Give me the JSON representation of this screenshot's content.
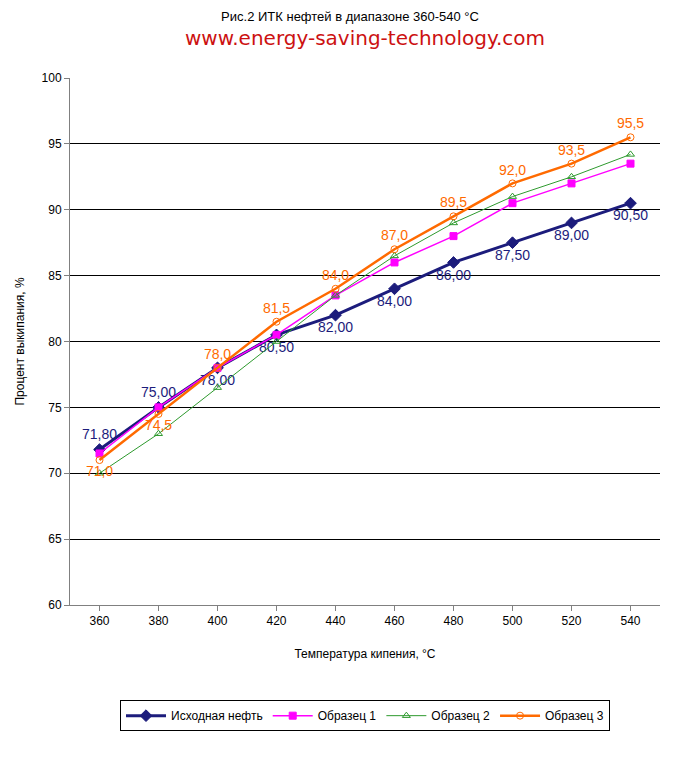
{
  "chart_data": {
    "type": "line",
    "title": "Рис.2 ИТК нефтей в диапазоне 360-540 °С",
    "subtitle": "www.energy-saving-technology.com",
    "x_label": "Температура кипения, °С",
    "y_label": "Процент выкипания, %",
    "x": [
      360,
      380,
      400,
      420,
      440,
      460,
      480,
      500,
      520,
      540
    ],
    "xlim": [
      350,
      550
    ],
    "xticks": [
      360,
      380,
      400,
      420,
      440,
      460,
      480,
      500,
      520,
      540
    ],
    "ylim": [
      60,
      100
    ],
    "yticks": [
      60,
      65,
      70,
      75,
      80,
      85,
      90,
      95,
      100
    ],
    "grid": true,
    "legend": "bottom",
    "series": [
      {
        "name": "Исходная нефть",
        "color": "#1c1c7c",
        "marker": "diamond",
        "line_style": "solid",
        "values": [
          71.8,
          75.0,
          78.0,
          80.5,
          82.0,
          84.0,
          86.0,
          87.5,
          89.0,
          90.5
        ],
        "data_labels": true,
        "value_labels": [
          "71,80",
          "75,00",
          "78,00",
          "80,50",
          "82,00",
          "84,00",
          "86,00",
          "87,50",
          "89,00",
          "90,50"
        ]
      },
      {
        "name": "Образец 1",
        "color": "#ff00ff",
        "marker": "square",
        "line_style": "solid",
        "values": [
          71.5,
          75.0,
          78.0,
          80.5,
          83.5,
          86.0,
          88.0,
          90.5,
          92.0,
          93.5
        ],
        "data_labels": false
      },
      {
        "name": "Образец 2",
        "color": "#2e9a2e",
        "marker": "triangle-up-open",
        "line_style": "solid",
        "values": [
          70.0,
          73.0,
          76.5,
          80.0,
          83.5,
          86.5,
          89.0,
          91.0,
          92.5,
          94.2
        ],
        "data_labels": false
      },
      {
        "name": "Образец 3",
        "color": "#ff6a00",
        "marker": "circle-open",
        "line_style": "solid",
        "values": [
          71.0,
          74.5,
          78.0,
          81.5,
          84.0,
          87.0,
          89.5,
          92.0,
          93.5,
          95.5
        ],
        "data_labels": true,
        "value_labels": [
          "71,0",
          "74,5",
          "78,0",
          "81,5",
          "84,0",
          "87,0",
          "89,5",
          "92,0",
          "93,5",
          "95,5"
        ]
      }
    ]
  }
}
